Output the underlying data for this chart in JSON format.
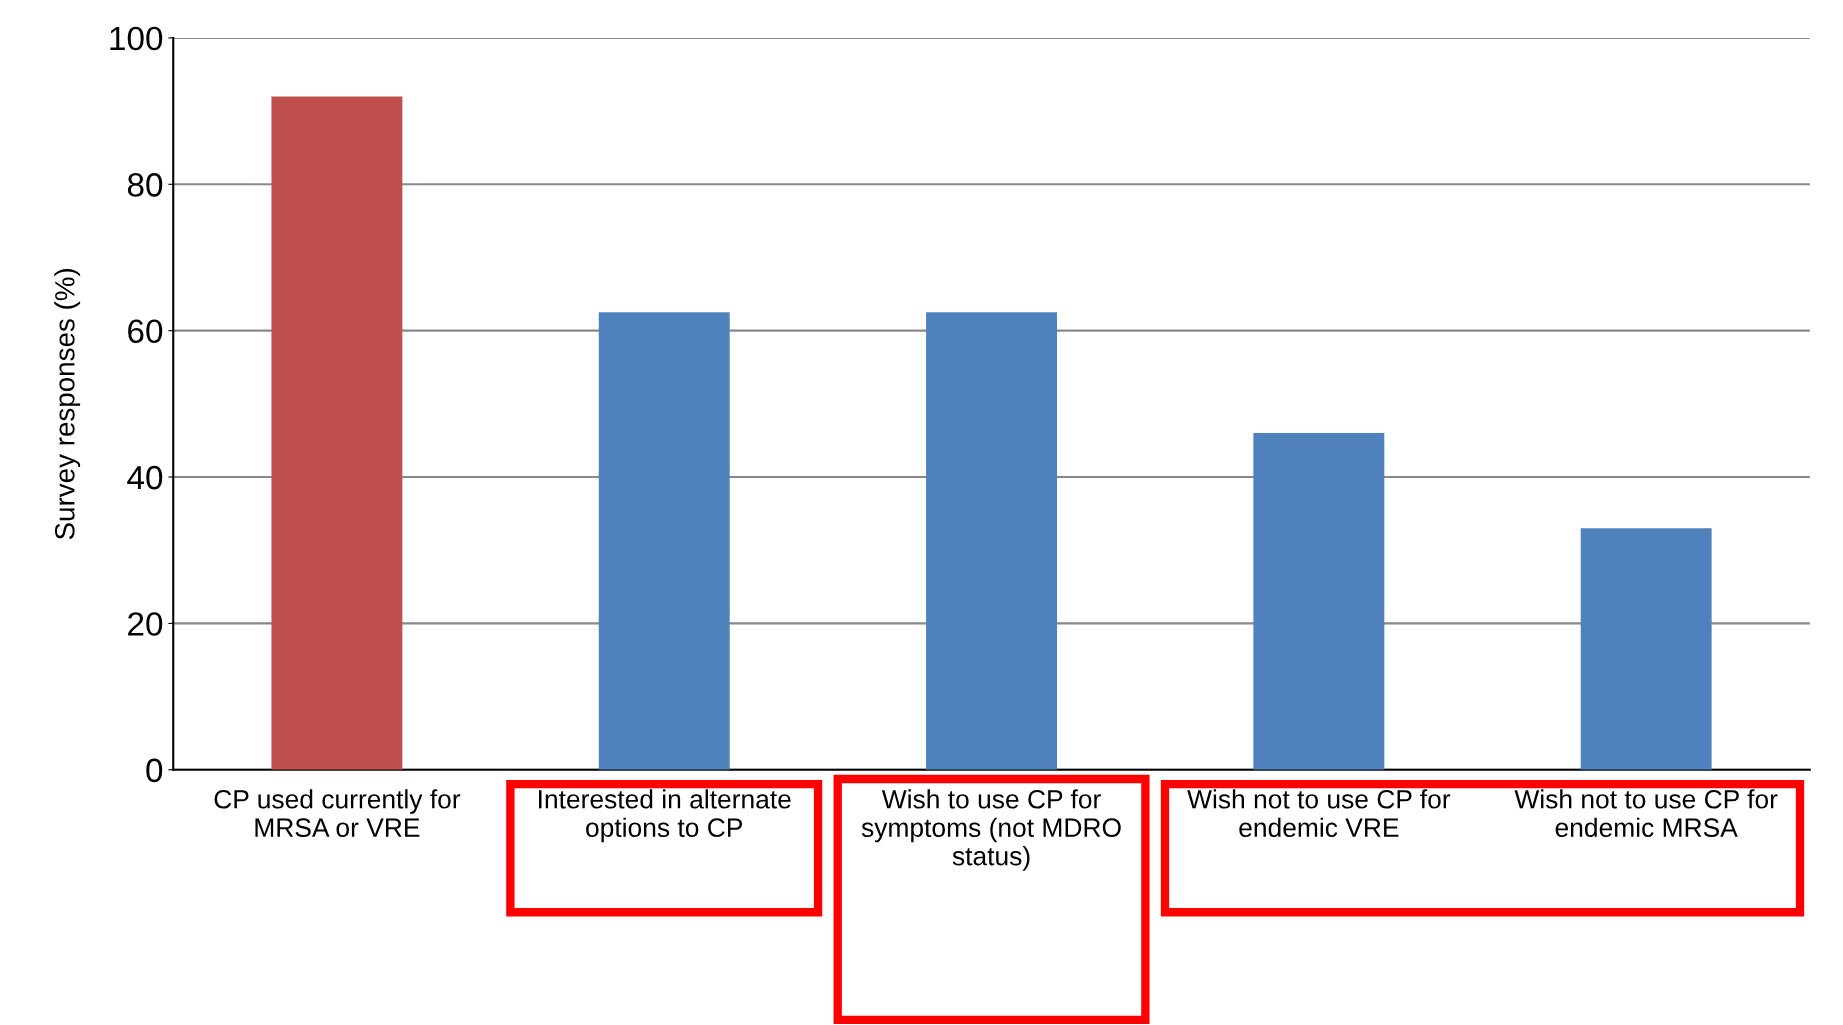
{
  "chart_data": {
    "type": "bar",
    "ylabel": "Survey responses (%)",
    "categories": [
      "CP used currently for\nMRSA or VRE",
      "Interested in alternate\noptions to CP",
      "Wish to use CP for\nsymptoms (not MDRO\nstatus)",
      "Wish not to use CP for\nendemic VRE",
      "Wish not to use CP for\nendemic MRSA"
    ],
    "values": [
      92,
      62.5,
      62.5,
      46,
      33
    ],
    "colors": [
      "#c0504d",
      "#4f81bd",
      "#4f81bd",
      "#4f81bd",
      "#4f81bd"
    ],
    "ylim": [
      0,
      100
    ],
    "yticks": [
      0,
      20,
      40,
      60,
      80,
      100
    ],
    "grid": "y"
  }
}
